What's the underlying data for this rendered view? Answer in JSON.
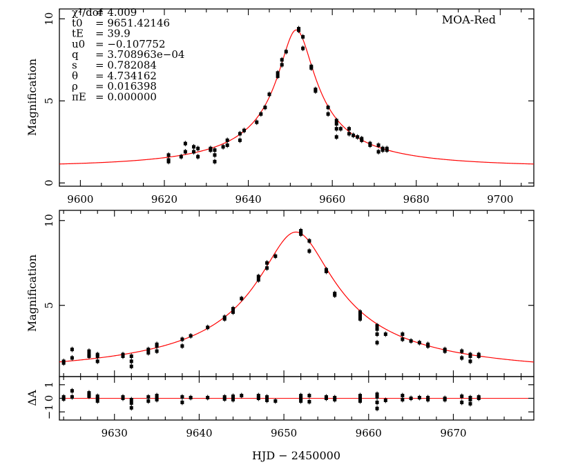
{
  "chart_data": [
    {
      "type": "scatter",
      "panel": "full light curve",
      "dataset_label": "MOA-Red",
      "ylabel": "Magnification",
      "xlim": [
        9595,
        9708
      ],
      "ylim": [
        -0.2,
        10.6
      ],
      "xticks": [
        "9600",
        "9620",
        "9640",
        "9660",
        "9680",
        "9700"
      ],
      "yticks": [
        "0",
        "5",
        "10"
      ],
      "params": [
        {
          "name": "χ²/dof",
          "value": "4.009"
        },
        {
          "name": "t0",
          "value": "9651.42146"
        },
        {
          "name": "tE",
          "value": "39.9"
        },
        {
          "name": "u0",
          "value": "−0.107752"
        },
        {
          "name": "q",
          "value": "3.708963e−04"
        },
        {
          "name": "s",
          "value": "0.782084"
        },
        {
          "name": "θ",
          "value": "4.734162"
        },
        {
          "name": "ρ",
          "value": "0.016398"
        },
        {
          "name": "πE",
          "value": "0.000000"
        }
      ],
      "model": {
        "t0": 9651.42146,
        "tE": 39.9,
        "u0": 0.107752,
        "color": "#ff0000"
      },
      "points": [
        [
          9621,
          1.7
        ],
        [
          9621,
          1.4
        ],
        [
          9621,
          1.3
        ],
        [
          9624,
          1.6
        ],
        [
          9625,
          2.4
        ],
        [
          9625,
          1.9
        ],
        [
          9627,
          2.2
        ],
        [
          9627,
          1.9
        ],
        [
          9628,
          2.1
        ],
        [
          9628,
          1.6
        ],
        [
          9631,
          2.0
        ],
        [
          9631,
          2.1
        ],
        [
          9632,
          1.3
        ],
        [
          9632,
          2.0
        ],
        [
          9632,
          1.7
        ],
        [
          9634,
          2.2
        ],
        [
          9635,
          2.6
        ],
        [
          9635,
          2.3
        ],
        [
          9638,
          3.0
        ],
        [
          9638,
          2.6
        ],
        [
          9639,
          3.2
        ],
        [
          9642,
          3.7
        ],
        [
          9643,
          4.2
        ],
        [
          9644,
          4.6
        ],
        [
          9645,
          5.4
        ],
        [
          9647,
          6.5
        ],
        [
          9647,
          6.7
        ],
        [
          9648,
          7.2
        ],
        [
          9648,
          7.5
        ],
        [
          9649,
          8.0
        ],
        [
          9652,
          9.3
        ],
        [
          9652,
          9.4
        ],
        [
          9653,
          8.2
        ],
        [
          9653,
          8.9
        ],
        [
          9655,
          7.0
        ],
        [
          9655,
          7.1
        ],
        [
          9656,
          5.7
        ],
        [
          9656,
          5.6
        ],
        [
          9659,
          4.6
        ],
        [
          9659,
          4.2
        ],
        [
          9661,
          3.6
        ],
        [
          9661,
          3.3
        ],
        [
          9661,
          2.8
        ],
        [
          9661,
          3.8
        ],
        [
          9662,
          3.3
        ],
        [
          9664,
          3.3
        ],
        [
          9664,
          3.0
        ],
        [
          9665,
          2.9
        ],
        [
          9666,
          2.8
        ],
        [
          9667,
          2.7
        ],
        [
          9667,
          2.6
        ],
        [
          9669,
          2.4
        ],
        [
          9669,
          2.3
        ],
        [
          9671,
          2.3
        ],
        [
          9671,
          1.9
        ],
        [
          9672,
          2.1
        ],
        [
          9672,
          2.0
        ],
        [
          9673,
          2.0
        ],
        [
          9673,
          2.1
        ]
      ]
    },
    {
      "type": "scatter",
      "panel": "peak zoom",
      "ylabel": "Magnification",
      "xlim": [
        9623.5,
        9679.5
      ],
      "ylim": [
        0.8,
        10.6
      ],
      "yticks": [
        "5",
        "10"
      ],
      "model": {
        "t0": 9651.42146,
        "tE": 39.9,
        "u0": 0.107752,
        "color": "#ff0000"
      },
      "points": [
        [
          9624,
          1.7
        ],
        [
          9624,
          1.6
        ],
        [
          9625,
          2.4
        ],
        [
          9625,
          1.9
        ],
        [
          9627,
          2.3
        ],
        [
          9627,
          2.0
        ],
        [
          9627,
          2.1
        ],
        [
          9628,
          2.0
        ],
        [
          9628,
          1.7
        ],
        [
          9628,
          2.1
        ],
        [
          9631,
          2.0
        ],
        [
          9631,
          2.1
        ],
        [
          9632,
          1.4
        ],
        [
          9632,
          2.0
        ],
        [
          9632,
          1.7
        ],
        [
          9634,
          2.2
        ],
        [
          9634,
          2.4
        ],
        [
          9635,
          2.6
        ],
        [
          9635,
          2.3
        ],
        [
          9635,
          2.7
        ],
        [
          9638,
          3.0
        ],
        [
          9638,
          2.6
        ],
        [
          9639,
          3.2
        ],
        [
          9641,
          3.7
        ],
        [
          9643,
          4.3
        ],
        [
          9643,
          4.2
        ],
        [
          9644,
          4.6
        ],
        [
          9644,
          4.8
        ],
        [
          9645,
          5.4
        ],
        [
          9647,
          6.5
        ],
        [
          9647,
          6.7
        ],
        [
          9648,
          7.2
        ],
        [
          9648,
          7.5
        ],
        [
          9649,
          7.9
        ],
        [
          9652,
          9.4
        ],
        [
          9652,
          9.2
        ],
        [
          9652,
          9.3
        ],
        [
          9653,
          8.8
        ],
        [
          9653,
          8.2
        ],
        [
          9655,
          7.0
        ],
        [
          9655,
          7.1
        ],
        [
          9656,
          5.7
        ],
        [
          9656,
          5.6
        ],
        [
          9659,
          4.6
        ],
        [
          9659,
          4.2
        ],
        [
          9659,
          4.4
        ],
        [
          9661,
          3.6
        ],
        [
          9661,
          3.3
        ],
        [
          9661,
          2.8
        ],
        [
          9661,
          3.8
        ],
        [
          9662,
          3.3
        ],
        [
          9664,
          3.3
        ],
        [
          9664,
          3.0
        ],
        [
          9665,
          2.9
        ],
        [
          9666,
          2.8
        ],
        [
          9667,
          2.7
        ],
        [
          9667,
          2.6
        ],
        [
          9669,
          2.4
        ],
        [
          9669,
          2.3
        ],
        [
          9671,
          2.3
        ],
        [
          9671,
          1.9
        ],
        [
          9672,
          2.1
        ],
        [
          9672,
          2.0
        ],
        [
          9672,
          1.7
        ],
        [
          9673,
          2.0
        ],
        [
          9673,
          2.1
        ]
      ]
    },
    {
      "type": "scatter",
      "panel": "residuals",
      "ylabel": "ΔA",
      "xlabel": "HJD − 2450000",
      "xlim": [
        9623.5,
        9679.5
      ],
      "ylim": [
        -1.6,
        1.6
      ],
      "xticks": [
        "9630",
        "9640",
        "9650",
        "9660",
        "9670"
      ],
      "yticks": [
        "−1",
        "0",
        "1"
      ],
      "zero_line_color": "#ff0000",
      "points": [
        [
          9624,
          -0.05
        ],
        [
          9624,
          0.1
        ],
        [
          9625,
          0.55
        ],
        [
          9625,
          0.1
        ],
        [
          9627,
          0.4
        ],
        [
          9627,
          0.15
        ],
        [
          9627,
          0.25
        ],
        [
          9628,
          0.0
        ],
        [
          9628,
          -0.2
        ],
        [
          9628,
          0.15
        ],
        [
          9631,
          0.0
        ],
        [
          9631,
          0.1
        ],
        [
          9632,
          -0.7
        ],
        [
          9632,
          -0.1
        ],
        [
          9632,
          -0.35
        ],
        [
          9634,
          -0.2
        ],
        [
          9634,
          0.1
        ],
        [
          9635,
          0.2
        ],
        [
          9635,
          -0.1
        ],
        [
          9635,
          0.0
        ],
        [
          9638,
          0.1
        ],
        [
          9638,
          -0.3
        ],
        [
          9639,
          0.05
        ],
        [
          9641,
          0.05
        ],
        [
          9643,
          0.1
        ],
        [
          9643,
          -0.05
        ],
        [
          9644,
          -0.1
        ],
        [
          9644,
          0.15
        ],
        [
          9645,
          0.2
        ],
        [
          9647,
          0.0
        ],
        [
          9647,
          0.2
        ],
        [
          9648,
          0.1
        ],
        [
          9648,
          -0.15
        ],
        [
          9649,
          -0.2
        ],
        [
          9652,
          0.0
        ],
        [
          9652,
          -0.2
        ],
        [
          9652,
          0.2
        ],
        [
          9653,
          0.2
        ],
        [
          9653,
          -0.25
        ],
        [
          9655,
          0.0
        ],
        [
          9655,
          0.1
        ],
        [
          9656,
          0.05
        ],
        [
          9656,
          -0.1
        ],
        [
          9659,
          0.2
        ],
        [
          9659,
          -0.2
        ],
        [
          9659,
          0.05
        ],
        [
          9661,
          0.1
        ],
        [
          9661,
          -0.3
        ],
        [
          9661,
          -0.75
        ],
        [
          9661,
          0.3
        ],
        [
          9662,
          -0.15
        ],
        [
          9664,
          0.2
        ],
        [
          9664,
          -0.1
        ],
        [
          9665,
          0.0
        ],
        [
          9666,
          0.05
        ],
        [
          9667,
          0.05
        ],
        [
          9667,
          -0.1
        ],
        [
          9669,
          0.0
        ],
        [
          9669,
          -0.1
        ],
        [
          9671,
          0.15
        ],
        [
          9671,
          -0.3
        ],
        [
          9672,
          0.05
        ],
        [
          9672,
          -0.1
        ],
        [
          9672,
          -0.4
        ],
        [
          9673,
          0.0
        ],
        [
          9673,
          0.1
        ]
      ]
    }
  ]
}
